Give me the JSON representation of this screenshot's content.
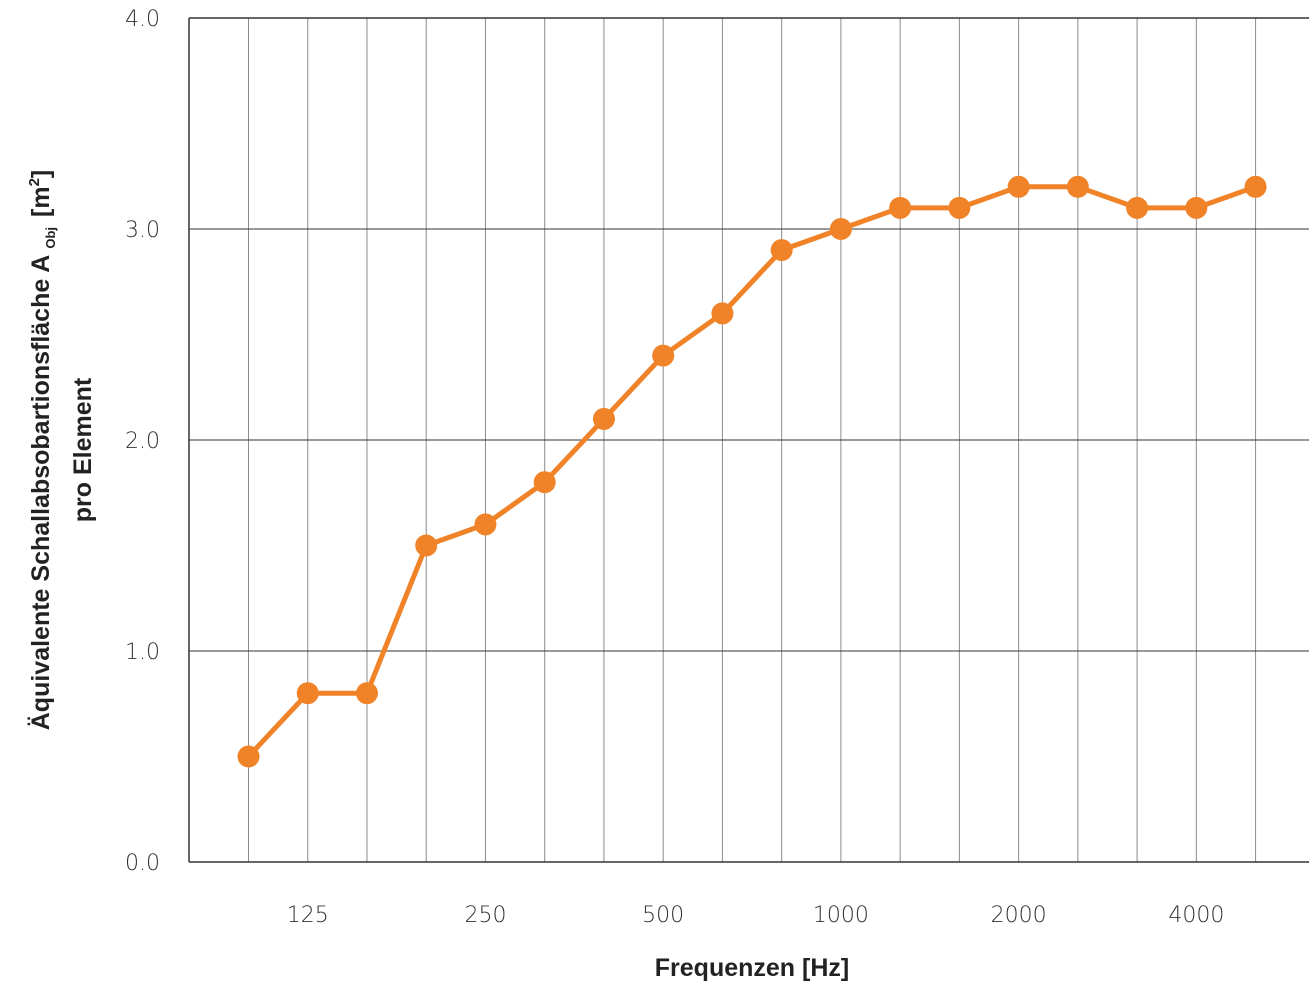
{
  "chart_data": {
    "type": "line",
    "x": [
      "100",
      "125",
      "160",
      "200",
      "250",
      "315",
      "400",
      "500",
      "630",
      "800",
      "1000",
      "1250",
      "1600",
      "2000",
      "2500",
      "3150",
      "4000",
      "5000"
    ],
    "x_tick_labels": [
      "125",
      "250",
      "500",
      "1000",
      "2000",
      "4000"
    ],
    "xlabel": "Frequenzen [Hz]",
    "ylabel": {
      "line1_main": "Äquivalente Schallabsobartionsfläche A",
      "line1_sub": "Obj",
      "line1_unit": "[m",
      "line1_sup": "2",
      "line1_close": "]",
      "line2": "pro Element"
    },
    "ylim": [
      0,
      4
    ],
    "y_tick_labels": [
      "0.0",
      "1.0",
      "2.0",
      "3.0",
      "4.0"
    ],
    "grid": true,
    "series": [
      {
        "values": [
          0.5,
          0.8,
          0.8,
          1.5,
          1.6,
          1.8,
          2.1,
          2.4,
          2.6,
          2.9,
          3.0,
          3.1,
          3.1,
          3.2,
          3.2,
          3.1,
          3.1,
          3.2
        ],
        "color": "#f08228"
      }
    ]
  }
}
